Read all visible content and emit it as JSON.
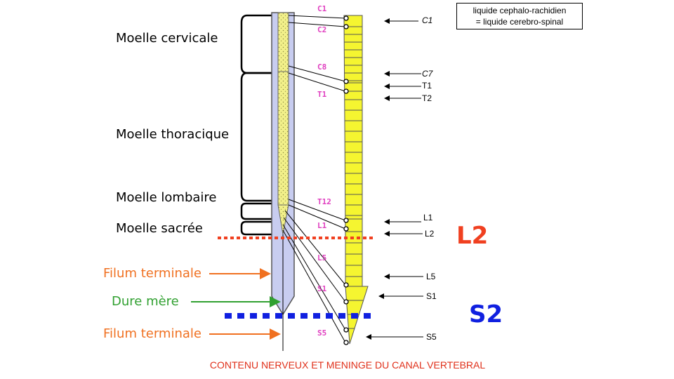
{
  "legend": {
    "line1": "liquide cephalo-rachidien",
    "line2": "= liquide cerebro-spinal"
  },
  "cord_regions": {
    "cervical": "Moelle cervicale",
    "thoracic": "Moelle thoracique",
    "lumbar": "Moelle lombaire",
    "sacral": "Moelle sacrée"
  },
  "pointer_labels": {
    "filum_upper": "Filum terminale",
    "dura": "Dure mère",
    "filum_lower": "Filum terminale"
  },
  "spinal_segments": {
    "c1": "C1",
    "c2": "C2",
    "c8": "C8",
    "t1": "T1",
    "t12": "T12",
    "l1": "L1",
    "l5": "L5",
    "s1": "S1",
    "s5": "S5"
  },
  "vertebrae": {
    "c1": "C1",
    "c7": "C7",
    "t1": "T1",
    "t2": "T2",
    "l1": "L1",
    "l2": "L2",
    "l5": "L5",
    "s1": "S1",
    "s5": "S5"
  },
  "levels": {
    "l2": "L2",
    "s2": "S2"
  },
  "caption": "CONTENU NERVEUX ET MENINGE DU CANAL VERTEBRAL",
  "colors": {
    "dura": "#c8cdf0",
    "cord": "#f2f08a",
    "vertebra": "#f5f530",
    "segment_text": "#e040c0",
    "l2_line": "#f04020",
    "s2_line": "#1020e0",
    "filum_arrow": "#f07020",
    "dura_arrow": "#30a030",
    "caption": "#e0301a"
  }
}
